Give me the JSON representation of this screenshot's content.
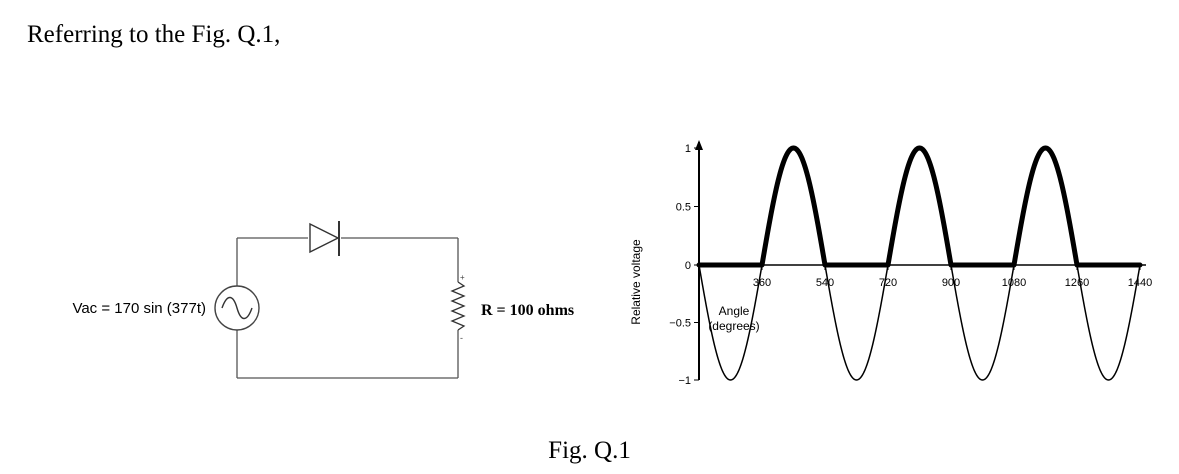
{
  "intro_text": "Referring to the Fig. Q.1,",
  "caption": "Fig. Q.1",
  "circuit": {
    "source_label": "Vac = 170 sin (377t)",
    "resistor_label": "R = 100 ohms",
    "plus_sign": "+",
    "minus_sign": "-",
    "components": [
      "ac-source",
      "diode",
      "resistor"
    ]
  },
  "chart_data": {
    "type": "line",
    "title": "",
    "xlabel": [
      "Angle",
      "(degrees)"
    ],
    "ylabel": "Relative voltage",
    "xlim": [
      0,
      1440
    ],
    "ylim": [
      -1,
      1
    ],
    "x_ticks": [
      360,
      540,
      720,
      900,
      1080,
      1260,
      1440
    ],
    "y_ticks": [
      1,
      0.5,
      0,
      -0.5,
      -1
    ],
    "y_tick_labels": [
      "1",
      "0.5",
      "0",
      "−0.5",
      "−1"
    ],
    "grid": false,
    "series": [
      {
        "function": "sin",
        "x_start": 180,
        "x_end": 1440,
        "amplitude": 1,
        "style": "thin"
      },
      {
        "function": "half-wave rectified sin",
        "x_start": 180,
        "x_end": 1440,
        "amplitude": 1,
        "style": "bold"
      }
    ]
  }
}
